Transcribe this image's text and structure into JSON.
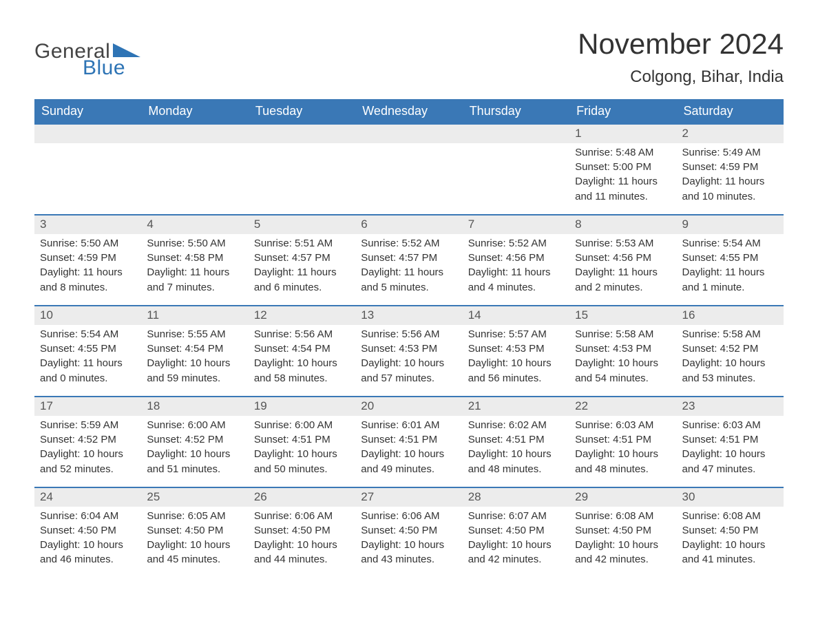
{
  "logo": {
    "text1": "General",
    "text2": "Blue"
  },
  "title": "November 2024",
  "location": "Colgong, Bihar, India",
  "colors": {
    "header_bg": "#3a78b6",
    "header_text": "#ffffff",
    "row_border": "#3a78b6",
    "daynum_bg": "#ececec",
    "body_text": "#333333",
    "logo_gray": "#444444",
    "logo_blue": "#2e74b5",
    "page_bg": "#ffffff"
  },
  "weekdays": [
    "Sunday",
    "Monday",
    "Tuesday",
    "Wednesday",
    "Thursday",
    "Friday",
    "Saturday"
  ],
  "weeks": [
    [
      {
        "n": "",
        "empty": true
      },
      {
        "n": "",
        "empty": true
      },
      {
        "n": "",
        "empty": true
      },
      {
        "n": "",
        "empty": true
      },
      {
        "n": "",
        "empty": true
      },
      {
        "n": "1",
        "sr": "Sunrise: 5:48 AM",
        "ss": "Sunset: 5:00 PM",
        "d1": "Daylight: 11 hours",
        "d2": "and 11 minutes."
      },
      {
        "n": "2",
        "sr": "Sunrise: 5:49 AM",
        "ss": "Sunset: 4:59 PM",
        "d1": "Daylight: 11 hours",
        "d2": "and 10 minutes."
      }
    ],
    [
      {
        "n": "3",
        "sr": "Sunrise: 5:50 AM",
        "ss": "Sunset: 4:59 PM",
        "d1": "Daylight: 11 hours",
        "d2": "and 8 minutes."
      },
      {
        "n": "4",
        "sr": "Sunrise: 5:50 AM",
        "ss": "Sunset: 4:58 PM",
        "d1": "Daylight: 11 hours",
        "d2": "and 7 minutes."
      },
      {
        "n": "5",
        "sr": "Sunrise: 5:51 AM",
        "ss": "Sunset: 4:57 PM",
        "d1": "Daylight: 11 hours",
        "d2": "and 6 minutes."
      },
      {
        "n": "6",
        "sr": "Sunrise: 5:52 AM",
        "ss": "Sunset: 4:57 PM",
        "d1": "Daylight: 11 hours",
        "d2": "and 5 minutes."
      },
      {
        "n": "7",
        "sr": "Sunrise: 5:52 AM",
        "ss": "Sunset: 4:56 PM",
        "d1": "Daylight: 11 hours",
        "d2": "and 4 minutes."
      },
      {
        "n": "8",
        "sr": "Sunrise: 5:53 AM",
        "ss": "Sunset: 4:56 PM",
        "d1": "Daylight: 11 hours",
        "d2": "and 2 minutes."
      },
      {
        "n": "9",
        "sr": "Sunrise: 5:54 AM",
        "ss": "Sunset: 4:55 PM",
        "d1": "Daylight: 11 hours",
        "d2": "and 1 minute."
      }
    ],
    [
      {
        "n": "10",
        "sr": "Sunrise: 5:54 AM",
        "ss": "Sunset: 4:55 PM",
        "d1": "Daylight: 11 hours",
        "d2": "and 0 minutes."
      },
      {
        "n": "11",
        "sr": "Sunrise: 5:55 AM",
        "ss": "Sunset: 4:54 PM",
        "d1": "Daylight: 10 hours",
        "d2": "and 59 minutes."
      },
      {
        "n": "12",
        "sr": "Sunrise: 5:56 AM",
        "ss": "Sunset: 4:54 PM",
        "d1": "Daylight: 10 hours",
        "d2": "and 58 minutes."
      },
      {
        "n": "13",
        "sr": "Sunrise: 5:56 AM",
        "ss": "Sunset: 4:53 PM",
        "d1": "Daylight: 10 hours",
        "d2": "and 57 minutes."
      },
      {
        "n": "14",
        "sr": "Sunrise: 5:57 AM",
        "ss": "Sunset: 4:53 PM",
        "d1": "Daylight: 10 hours",
        "d2": "and 56 minutes."
      },
      {
        "n": "15",
        "sr": "Sunrise: 5:58 AM",
        "ss": "Sunset: 4:53 PM",
        "d1": "Daylight: 10 hours",
        "d2": "and 54 minutes."
      },
      {
        "n": "16",
        "sr": "Sunrise: 5:58 AM",
        "ss": "Sunset: 4:52 PM",
        "d1": "Daylight: 10 hours",
        "d2": "and 53 minutes."
      }
    ],
    [
      {
        "n": "17",
        "sr": "Sunrise: 5:59 AM",
        "ss": "Sunset: 4:52 PM",
        "d1": "Daylight: 10 hours",
        "d2": "and 52 minutes."
      },
      {
        "n": "18",
        "sr": "Sunrise: 6:00 AM",
        "ss": "Sunset: 4:52 PM",
        "d1": "Daylight: 10 hours",
        "d2": "and 51 minutes."
      },
      {
        "n": "19",
        "sr": "Sunrise: 6:00 AM",
        "ss": "Sunset: 4:51 PM",
        "d1": "Daylight: 10 hours",
        "d2": "and 50 minutes."
      },
      {
        "n": "20",
        "sr": "Sunrise: 6:01 AM",
        "ss": "Sunset: 4:51 PM",
        "d1": "Daylight: 10 hours",
        "d2": "and 49 minutes."
      },
      {
        "n": "21",
        "sr": "Sunrise: 6:02 AM",
        "ss": "Sunset: 4:51 PM",
        "d1": "Daylight: 10 hours",
        "d2": "and 48 minutes."
      },
      {
        "n": "22",
        "sr": "Sunrise: 6:03 AM",
        "ss": "Sunset: 4:51 PM",
        "d1": "Daylight: 10 hours",
        "d2": "and 48 minutes."
      },
      {
        "n": "23",
        "sr": "Sunrise: 6:03 AM",
        "ss": "Sunset: 4:51 PM",
        "d1": "Daylight: 10 hours",
        "d2": "and 47 minutes."
      }
    ],
    [
      {
        "n": "24",
        "sr": "Sunrise: 6:04 AM",
        "ss": "Sunset: 4:50 PM",
        "d1": "Daylight: 10 hours",
        "d2": "and 46 minutes."
      },
      {
        "n": "25",
        "sr": "Sunrise: 6:05 AM",
        "ss": "Sunset: 4:50 PM",
        "d1": "Daylight: 10 hours",
        "d2": "and 45 minutes."
      },
      {
        "n": "26",
        "sr": "Sunrise: 6:06 AM",
        "ss": "Sunset: 4:50 PM",
        "d1": "Daylight: 10 hours",
        "d2": "and 44 minutes."
      },
      {
        "n": "27",
        "sr": "Sunrise: 6:06 AM",
        "ss": "Sunset: 4:50 PM",
        "d1": "Daylight: 10 hours",
        "d2": "and 43 minutes."
      },
      {
        "n": "28",
        "sr": "Sunrise: 6:07 AM",
        "ss": "Sunset: 4:50 PM",
        "d1": "Daylight: 10 hours",
        "d2": "and 42 minutes."
      },
      {
        "n": "29",
        "sr": "Sunrise: 6:08 AM",
        "ss": "Sunset: 4:50 PM",
        "d1": "Daylight: 10 hours",
        "d2": "and 42 minutes."
      },
      {
        "n": "30",
        "sr": "Sunrise: 6:08 AM",
        "ss": "Sunset: 4:50 PM",
        "d1": "Daylight: 10 hours",
        "d2": "and 41 minutes."
      }
    ]
  ]
}
